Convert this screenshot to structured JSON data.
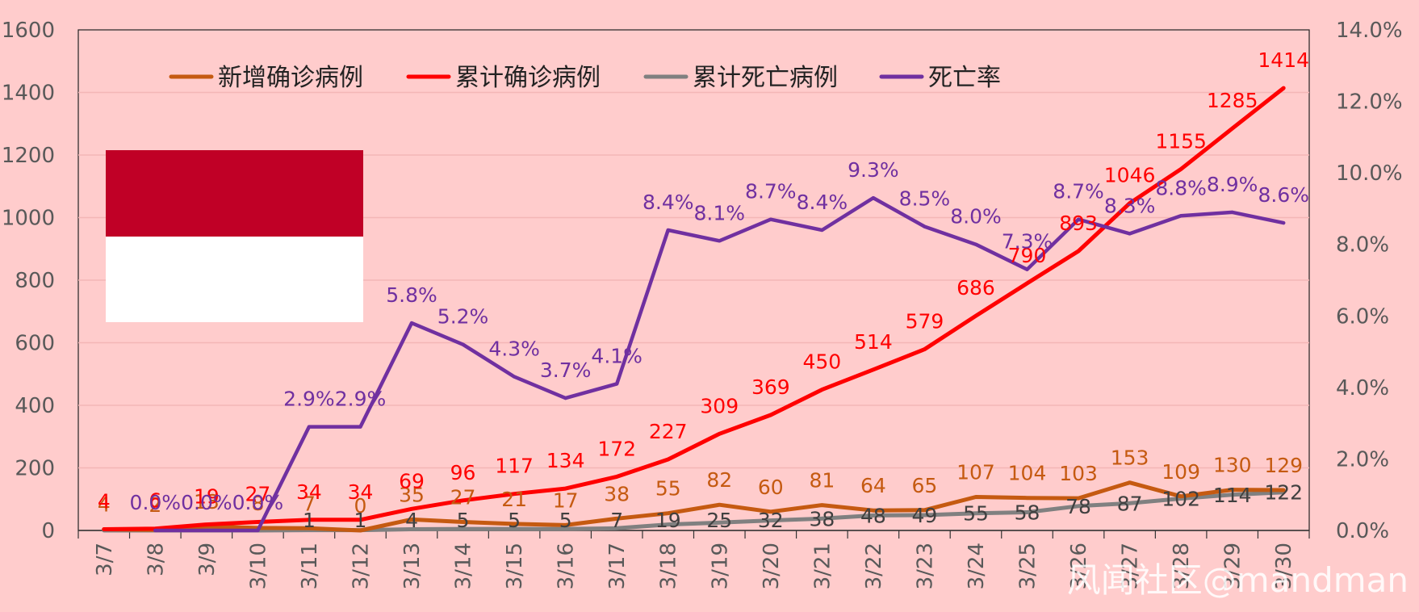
{
  "chart_data": {
    "type": "line",
    "categories": [
      "3/7",
      "3/8",
      "3/9",
      "3/10",
      "3/11",
      "3/12",
      "3/13",
      "3/14",
      "3/15",
      "3/16",
      "3/17",
      "3/18",
      "3/19",
      "3/20",
      "3/21",
      "3/22",
      "3/23",
      "3/24",
      "3/25",
      "3/26",
      "3/27",
      "3/28",
      "3/29",
      "3/30"
    ],
    "series": [
      {
        "name": "新增确诊病例",
        "axis": "left",
        "color": "#c55a11",
        "values": [
          4,
          2,
          13,
          8,
          7,
          0,
          35,
          27,
          21,
          17,
          38,
          55,
          82,
          60,
          81,
          64,
          65,
          107,
          104,
          103,
          153,
          109,
          130,
          129
        ],
        "labels": [
          "4",
          "2",
          "13",
          "8",
          "7",
          "0",
          "35",
          "27",
          "21",
          "17",
          "38",
          "55",
          "82",
          "60",
          "81",
          "64",
          "65",
          "107",
          "104",
          "103",
          "153",
          "109",
          "130",
          "129"
        ]
      },
      {
        "name": "累计确诊病例",
        "axis": "left",
        "color": "#ff0000",
        "values": [
          4,
          6,
          19,
          27,
          34,
          34,
          69,
          96,
          117,
          134,
          172,
          227,
          309,
          369,
          450,
          514,
          579,
          686,
          790,
          893,
          1046,
          1155,
          1285,
          1414
        ],
        "labels": [
          "4",
          "6",
          "19",
          "27",
          "34",
          "34",
          "69",
          "96",
          "117",
          "134",
          "172",
          "227",
          "309",
          "369",
          "450",
          "514",
          "579",
          "686",
          "790",
          "893",
          "1046",
          "1155",
          "1285",
          "1414"
        ]
      },
      {
        "name": "累计死亡病例",
        "axis": "left",
        "color": "#808080",
        "values": [
          0,
          0,
          0,
          0,
          1,
          1,
          4,
          5,
          5,
          5,
          7,
          19,
          25,
          32,
          38,
          48,
          49,
          55,
          58,
          78,
          87,
          102,
          114,
          122
        ],
        "labels": [
          "",
          "",
          "",
          "",
          "1",
          "1",
          "4",
          "5",
          "5",
          "5",
          "7",
          "19",
          "25",
          "32",
          "38",
          "48",
          "49",
          "55",
          "58",
          "78",
          "87",
          "102",
          "114",
          "122"
        ]
      },
      {
        "name": "死亡率",
        "axis": "right",
        "color": "#7030a0",
        "values": [
          null,
          0.0,
          0.0,
          0.0,
          2.9,
          2.9,
          5.8,
          5.2,
          4.3,
          3.7,
          4.1,
          8.4,
          8.1,
          8.7,
          8.4,
          9.3,
          8.5,
          8.0,
          7.3,
          8.7,
          8.3,
          8.8,
          8.9,
          8.6
        ],
        "labels": [
          "",
          "0.0%",
          "0.0%",
          "0.0%",
          "2.9%",
          "2.9%",
          "5.8%",
          "5.2%",
          "4.3%",
          "3.7%",
          "4.1%",
          "8.4%",
          "8.1%",
          "8.7%",
          "8.4%",
          "9.3%",
          "8.5%",
          "8.0%",
          "7.3%",
          "8.7%",
          "8.3%",
          "8.8%",
          "8.9%",
          "8.6%"
        ]
      }
    ],
    "y_left": {
      "min": 0,
      "max": 1600,
      "ticks": [
        "0",
        "200",
        "400",
        "600",
        "800",
        "1000",
        "1200",
        "1400",
        "1600"
      ]
    },
    "y_right": {
      "min": 0,
      "max": 14,
      "ticks": [
        "0.0%",
        "2.0%",
        "4.0%",
        "6.0%",
        "8.0%",
        "10.0%",
        "12.0%",
        "14.0%"
      ]
    },
    "grid": true,
    "legend": "top-left",
    "flag_colors": [
      "#c00026",
      "#ffffff"
    ]
  },
  "watermark": "风闻社区@mandman"
}
